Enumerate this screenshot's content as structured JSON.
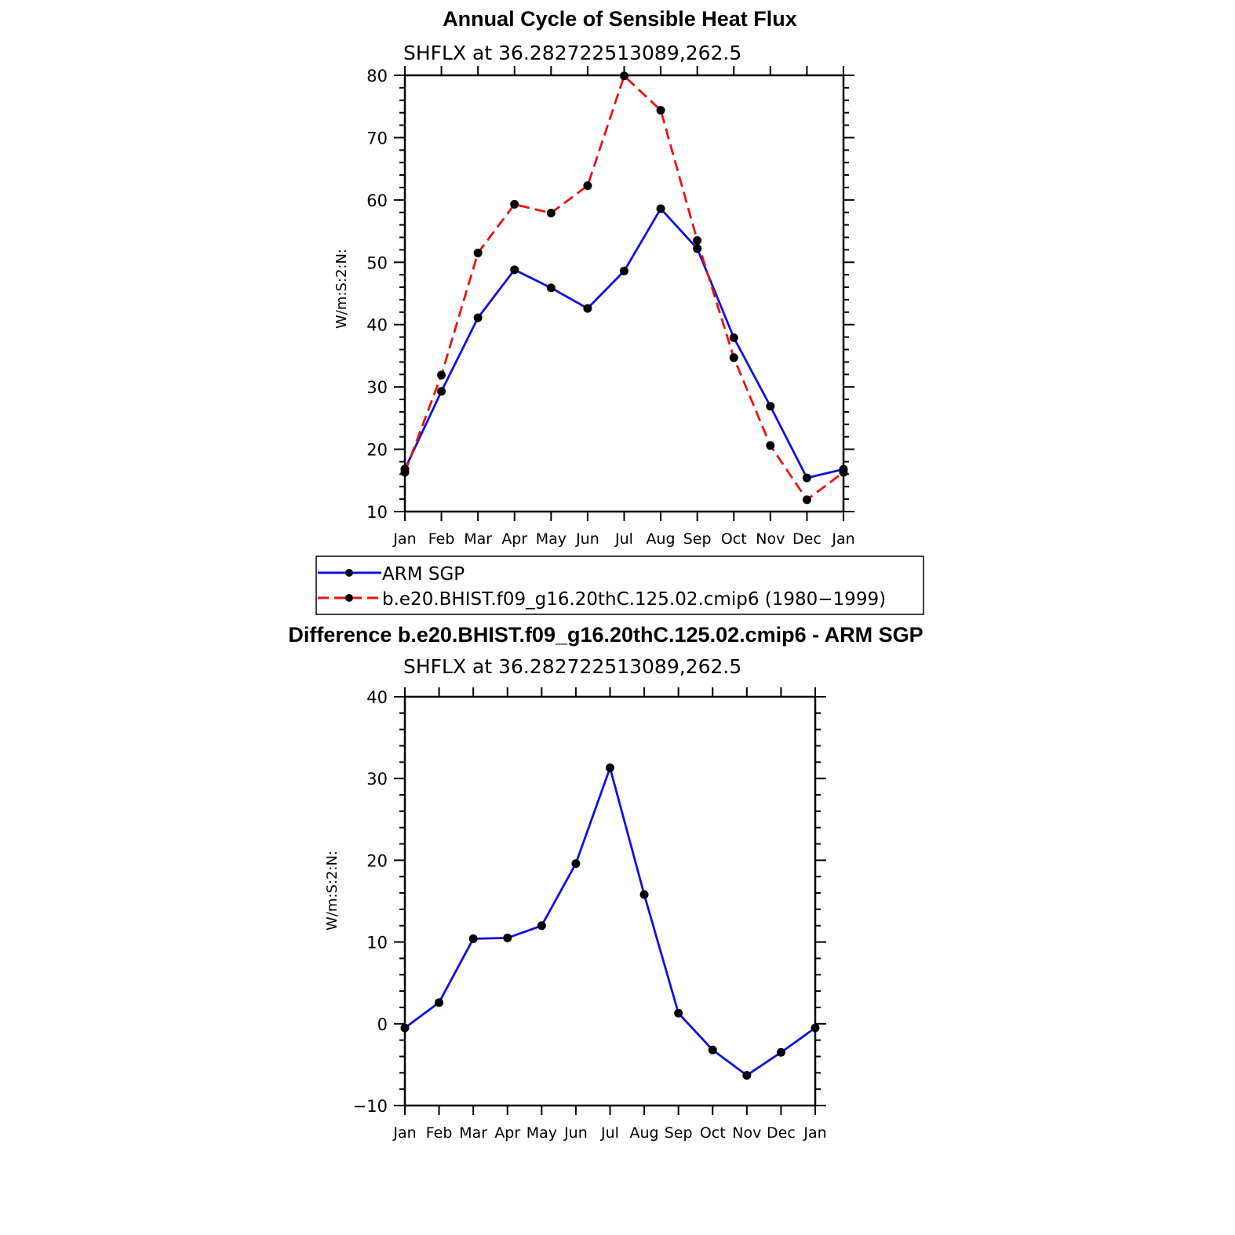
{
  "colors": {
    "arm": "#1010e0",
    "model": "#ee1111",
    "marker": "#000000"
  },
  "chart_data": [
    {
      "type": "line",
      "title": "Annual Cycle of Sensible Heat Flux",
      "subtitle": "SHFLX at 36.282722513089,262.5",
      "ylabel": "W/m:S:2:N:",
      "ylim": [
        10,
        80
      ],
      "yticks": [
        10,
        20,
        30,
        40,
        50,
        60,
        70,
        80
      ],
      "ytick_labels": [
        "10",
        "20",
        "30",
        "40",
        "50",
        "60",
        "70",
        "80"
      ],
      "categories": [
        "Jan",
        "Feb",
        "Mar",
        "Apr",
        "May",
        "Jun",
        "Jul",
        "Aug",
        "Sep",
        "Oct",
        "Nov",
        "Dec",
        "Jan"
      ],
      "series": [
        {
          "name": "ARM SGP",
          "style": "solid",
          "values": [
            16.8,
            29.3,
            41.1,
            48.8,
            45.9,
            42.6,
            48.6,
            58.6,
            52.2,
            37.9,
            26.9,
            15.4,
            16.8
          ]
        },
        {
          "name": "b.e20.BHIST.f09_g16.20thC.125.02.cmip6 (1980−1999)",
          "style": "dashed",
          "values": [
            16.3,
            31.9,
            51.5,
            59.3,
            57.9,
            62.3,
            79.9,
            74.4,
            53.5,
            34.7,
            20.6,
            11.9,
            16.3
          ]
        }
      ],
      "legend": {
        "position": "below",
        "labels": [
          "ARM SGP",
          "b.e20.BHIST.f09_g16.20thC.125.02.cmip6 (1980−1999)"
        ]
      }
    },
    {
      "type": "line",
      "title": "Difference b.e20.BHIST.f09_g16.20thC.125.02.cmip6 - ARM SGP",
      "subtitle": "SHFLX at 36.282722513089,262.5",
      "ylabel": "W/m:S:2:N:",
      "ylim": [
        -10,
        40
      ],
      "yticks": [
        -10,
        0,
        10,
        20,
        30,
        40
      ],
      "ytick_labels": [
        "−10",
        "0",
        "10",
        "20",
        "30",
        "40"
      ],
      "categories": [
        "Jan",
        "Feb",
        "Mar",
        "Apr",
        "May",
        "Jun",
        "Jul",
        "Aug",
        "Sep",
        "Oct",
        "Nov",
        "Dec",
        "Jan"
      ],
      "series": [
        {
          "name": "Difference",
          "style": "solid",
          "values": [
            -0.5,
            2.6,
            10.4,
            10.5,
            12.0,
            19.6,
            31.3,
            15.8,
            1.3,
            -3.2,
            -6.3,
            -3.5,
            -0.5
          ]
        }
      ]
    }
  ]
}
